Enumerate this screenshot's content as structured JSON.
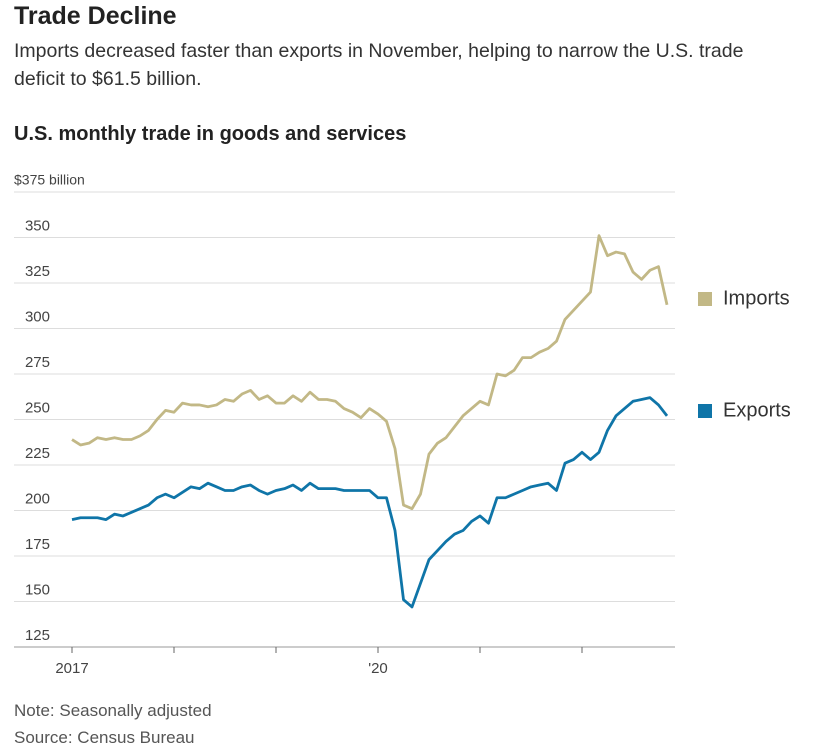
{
  "chart_data": {
    "type": "line",
    "title": "Trade Decline",
    "subtitle": "Imports decreased faster than exports in November, helping to narrow the U.S. trade deficit to $61.5 billion.",
    "chart_title": "U.S. monthly trade in goods and services",
    "note": "Note: Seasonally adjusted",
    "source": "Source: Census Bureau",
    "categories": [
      "2017",
      null,
      null,
      null,
      null,
      null,
      null,
      null,
      null,
      null,
      null,
      null,
      null,
      null,
      null,
      null,
      null,
      null,
      null,
      null,
      null,
      null,
      null,
      null,
      null,
      null,
      null,
      null,
      null,
      null,
      null,
      null,
      null,
      null,
      null,
      null,
      "'20",
      null,
      null,
      null,
      null,
      null,
      null,
      null,
      null,
      null,
      null,
      null,
      null,
      null,
      null,
      null,
      null,
      null,
      null,
      null,
      null,
      null,
      null,
      null,
      null,
      null,
      null,
      null,
      null,
      null,
      null,
      null,
      null,
      null,
      null
    ],
    "series": [
      {
        "name": "Imports",
        "color": "#c2b886",
        "values": [
          239,
          236,
          237,
          240,
          239,
          240,
          239,
          239,
          241,
          244,
          250,
          255,
          254,
          259,
          258,
          258,
          257,
          258,
          261,
          260,
          264,
          266,
          261,
          263,
          259,
          259,
          263,
          260,
          265,
          261,
          261,
          260,
          256,
          254,
          251,
          256,
          253,
          249,
          234,
          203,
          201,
          209,
          231,
          237,
          240,
          246,
          252,
          256,
          260,
          258,
          275,
          274,
          277,
          284,
          284,
          287,
          289,
          293,
          305,
          310,
          315,
          320,
          351,
          340,
          342,
          341,
          331,
          327,
          332,
          334,
          313
        ]
      },
      {
        "name": "Exports",
        "color": "#0f75a8",
        "values": [
          195,
          196,
          196,
          196,
          195,
          198,
          197,
          199,
          201,
          203,
          207,
          209,
          207,
          210,
          213,
          212,
          215,
          213,
          211,
          211,
          213,
          214,
          211,
          209,
          211,
          212,
          214,
          211,
          215,
          212,
          212,
          212,
          211,
          211,
          211,
          211,
          207,
          207,
          189,
          151,
          147,
          160,
          173,
          178,
          183,
          187,
          189,
          194,
          197,
          193,
          207,
          207,
          209,
          211,
          213,
          214,
          215,
          211,
          226,
          228,
          232,
          228,
          232,
          244,
          252,
          256,
          260,
          261,
          262,
          258,
          252
        ]
      }
    ],
    "ylim": [
      125,
      375
    ],
    "yticks": [
      125,
      150,
      175,
      200,
      225,
      250,
      275,
      300,
      325,
      350,
      {
        "value": 375,
        "label": "$375 billion"
      }
    ],
    "grid": true
  }
}
